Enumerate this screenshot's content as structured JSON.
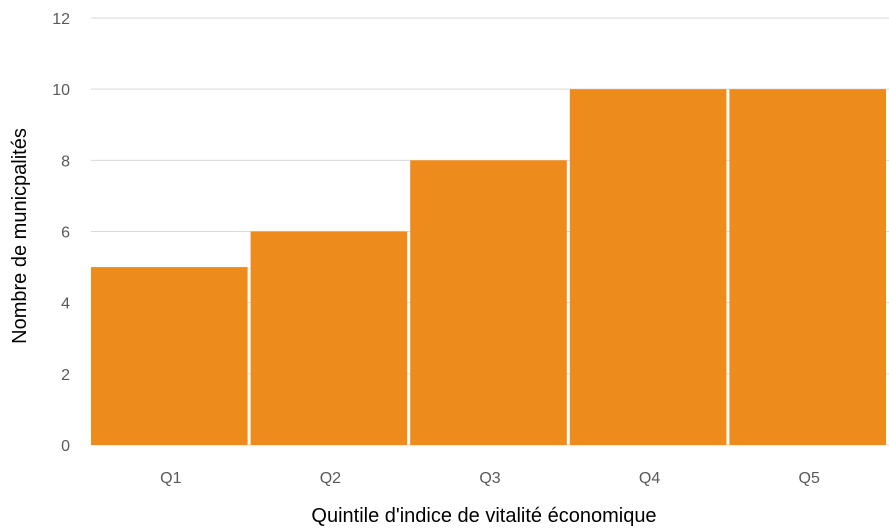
{
  "chart_data": {
    "type": "bar",
    "title": "",
    "xlabel": "Quintile d'indice de vitalité économique",
    "ylabel": "Nombre de municpalités",
    "categories": [
      "Q1",
      "Q2",
      "Q3",
      "Q4",
      "Q5"
    ],
    "values": [
      5,
      6,
      8,
      10,
      10
    ],
    "ylim": [
      0,
      12
    ],
    "yticks": [
      "0",
      "2",
      "4",
      "6",
      "8",
      "10",
      "12"
    ],
    "grid": true,
    "legend": "none",
    "bar_color": "#ED8C1C",
    "grid_color": "#D9D9D9"
  }
}
